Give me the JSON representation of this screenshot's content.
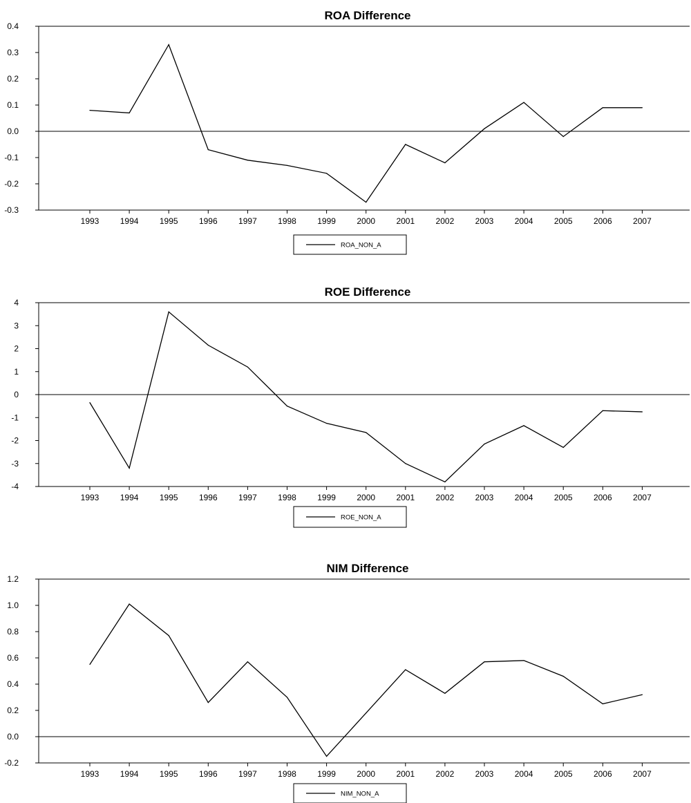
{
  "chart_data": [
    {
      "type": "line",
      "title": "ROA Difference",
      "xlabel": "",
      "ylabel": "",
      "categories": [
        "1993",
        "1994",
        "1995",
        "1996",
        "1997",
        "1998",
        "1999",
        "2000",
        "2001",
        "2002",
        "2003",
        "2004",
        "2005",
        "2006",
        "2007"
      ],
      "series": [
        {
          "name": "ROA_NON_A",
          "values": [
            0.08,
            0.07,
            0.33,
            -0.07,
            -0.11,
            -0.13,
            -0.16,
            -0.27,
            -0.05,
            -0.12,
            0.01,
            0.11,
            -0.02,
            0.09,
            0.09
          ]
        }
      ],
      "ylim": [
        -0.3,
        0.4
      ],
      "yticks": [
        "0.4",
        "0.3",
        "0.2",
        "0.1",
        "0.0",
        "-0.1",
        "-0.2",
        "-0.3"
      ],
      "zero_line": true,
      "grid": false,
      "legend": "bottom-center"
    },
    {
      "type": "line",
      "title": "ROE Difference",
      "xlabel": "",
      "ylabel": "",
      "categories": [
        "1993",
        "1994",
        "1995",
        "1996",
        "1997",
        "1998",
        "1999",
        "2000",
        "2001",
        "2002",
        "2003",
        "2004",
        "2005",
        "2006",
        "2007"
      ],
      "series": [
        {
          "name": "ROE_NON_A",
          "values": [
            -0.35,
            -3.2,
            3.6,
            2.15,
            1.2,
            -0.5,
            -1.25,
            -1.65,
            -3.0,
            -3.8,
            -2.15,
            -1.35,
            -2.3,
            -0.7,
            -0.75
          ]
        }
      ],
      "ylim": [
        -4,
        4
      ],
      "yticks": [
        "4",
        "3",
        "2",
        "1",
        "0",
        "-1",
        "-2",
        "-3",
        "-4"
      ],
      "zero_line": true,
      "grid": false,
      "legend": "bottom-center"
    },
    {
      "type": "line",
      "title": "NIM Difference",
      "xlabel": "",
      "ylabel": "",
      "categories": [
        "1993",
        "1994",
        "1995",
        "1996",
        "1997",
        "1998",
        "1999",
        "2000",
        "2001",
        "2002",
        "2003",
        "2004",
        "2005",
        "2006",
        "2007"
      ],
      "series": [
        {
          "name": "NIM_NON_A",
          "values": [
            0.55,
            1.01,
            0.77,
            0.26,
            0.57,
            0.3,
            -0.15,
            0.18,
            0.51,
            0.33,
            0.57,
            0.58,
            0.46,
            0.25,
            0.32
          ]
        }
      ],
      "ylim": [
        -0.2,
        1.2
      ],
      "yticks": [
        "1.2",
        "1.0",
        "0.8",
        "0.6",
        "0.4",
        "0.2",
        "0.0",
        "-0.2"
      ],
      "zero_line": true,
      "grid": false,
      "legend": "bottom-center"
    }
  ]
}
